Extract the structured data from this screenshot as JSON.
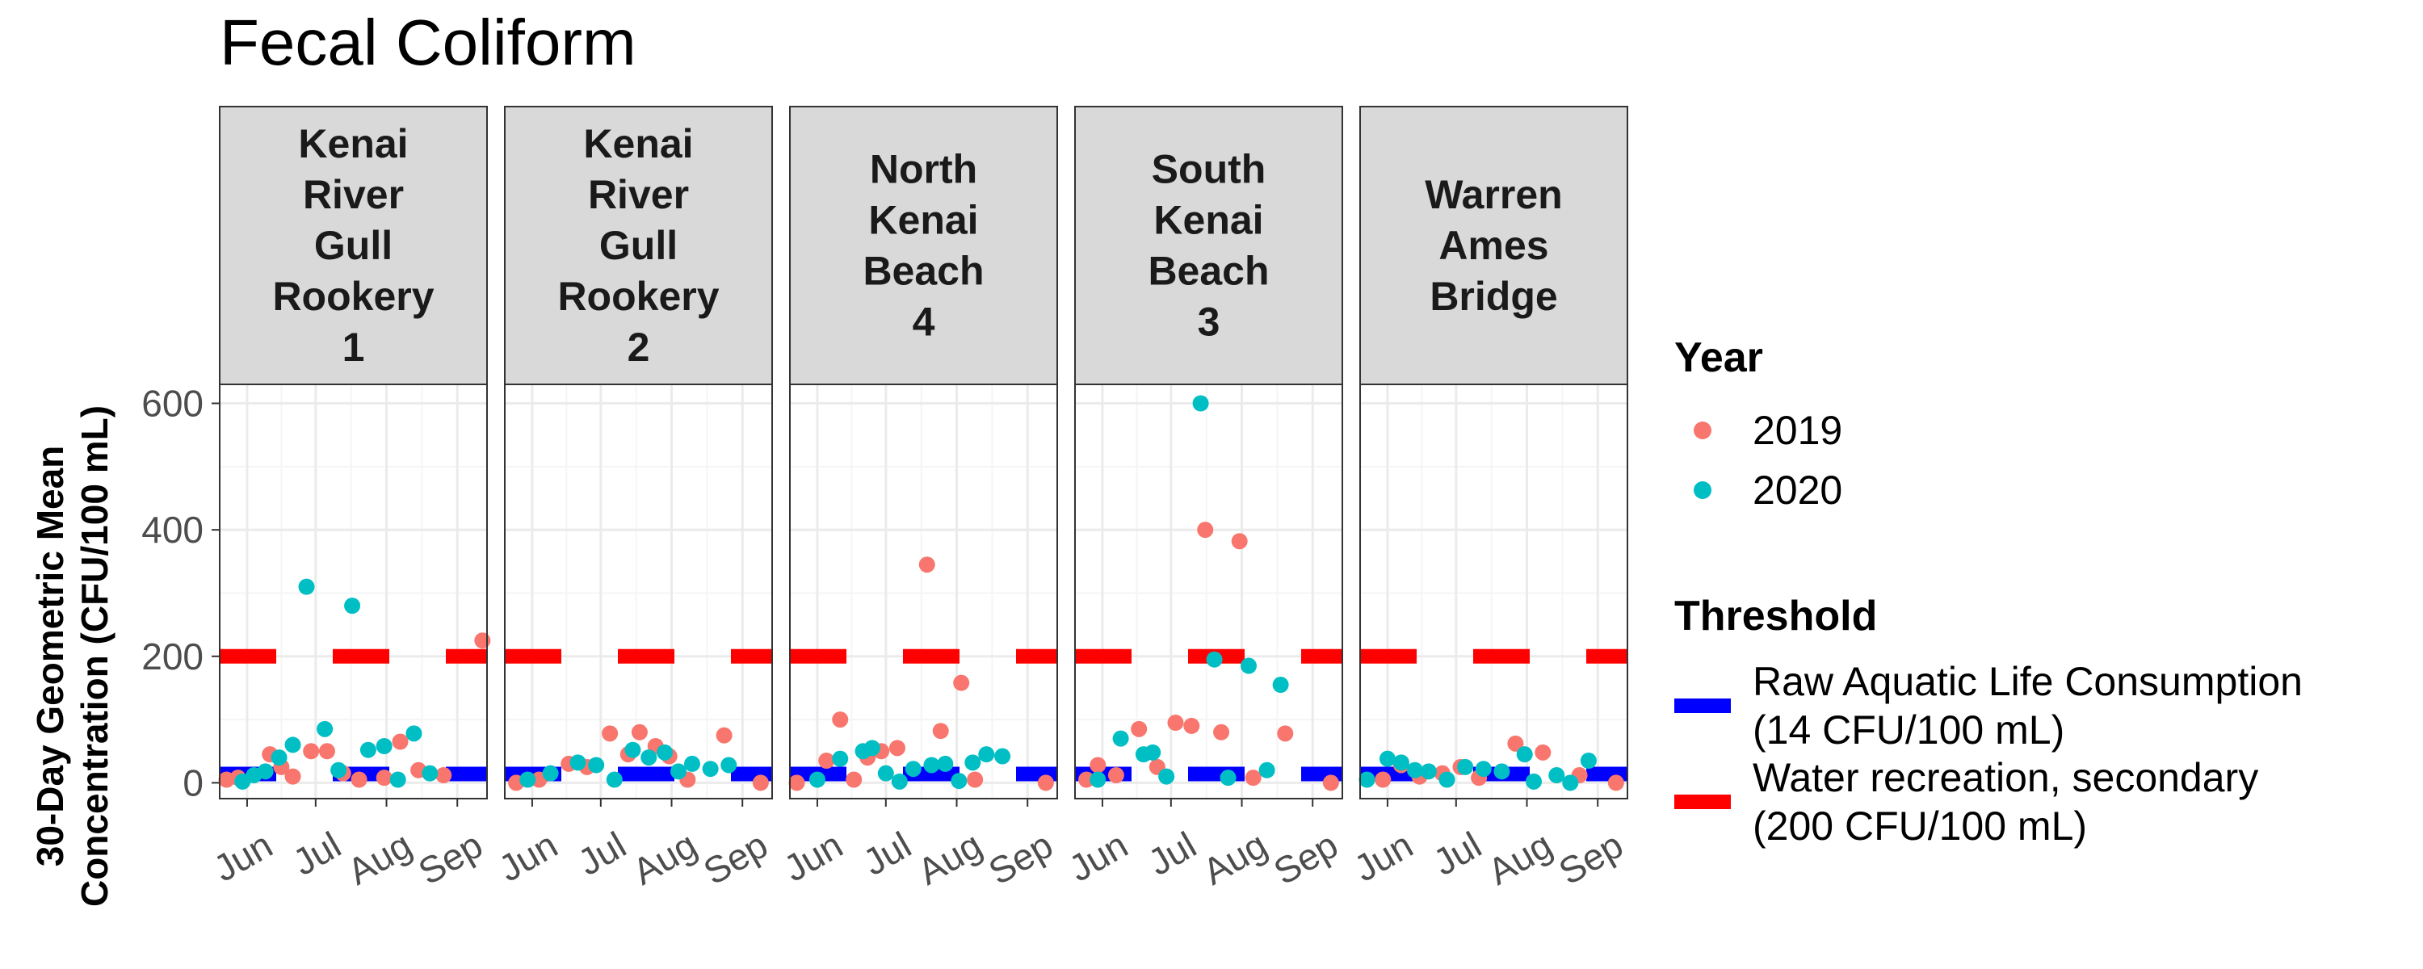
{
  "colors": {
    "y2019": "#F8766D",
    "y2020": "#00BFC4",
    "raw_threshold": "#0000FF",
    "rec_threshold": "#FF0000",
    "strip_fill": "#D9D9D9",
    "grid_major": "#EBEBEB",
    "grid_minor": "#F5F5F5"
  },
  "chart_data": {
    "type": "scatter",
    "title": "Fecal Coliform",
    "xlabel": "",
    "ylabel_lines": [
      "30-Day Geometric Mean",
      "Concentration (CFU/100 mL)"
    ],
    "ylim": [
      -25,
      630
    ],
    "yticks": [
      0,
      200,
      400,
      600
    ],
    "xlim": [
      140,
      257
    ],
    "xticks": [
      {
        "label": "Jun",
        "doy": 152
      },
      {
        "label": "Jul",
        "doy": 182
      },
      {
        "label": "Aug",
        "doy": 213
      },
      {
        "label": "Sep",
        "doy": 244
      }
    ],
    "grid": true,
    "legend_position": "right",
    "facets": [
      {
        "label_lines": [
          "Kenai",
          "River",
          "Gull",
          "Rookery",
          "1"
        ],
        "series": [
          {
            "name": "2019",
            "points": [
              [
                143,
                5
              ],
              [
                148,
                8
              ],
              [
                162,
                45
              ],
              [
                167,
                25
              ],
              [
                172,
                10
              ],
              [
                180,
                50
              ],
              [
                187,
                50
              ],
              [
                194,
                15
              ],
              [
                201,
                5
              ],
              [
                212,
                8
              ],
              [
                219,
                65
              ],
              [
                227,
                20
              ],
              [
                238,
                12
              ],
              [
                255,
                225
              ]
            ]
          },
          {
            "name": "2020",
            "points": [
              [
                150,
                2
              ],
              [
                155,
                12
              ],
              [
                160,
                18
              ],
              [
                166,
                40
              ],
              [
                172,
                60
              ],
              [
                178,
                310
              ],
              [
                186,
                85
              ],
              [
                192,
                20
              ],
              [
                198,
                280
              ],
              [
                205,
                52
              ],
              [
                212,
                58
              ],
              [
                218,
                5
              ],
              [
                225,
                78
              ],
              [
                232,
                15
              ]
            ]
          }
        ]
      },
      {
        "label_lines": [
          "Kenai",
          "River",
          "Gull",
          "Rookery",
          "2"
        ],
        "series": [
          {
            "name": "2019",
            "points": [
              [
                145,
                0
              ],
              [
                155,
                5
              ],
              [
                168,
                30
              ],
              [
                176,
                25
              ],
              [
                186,
                78
              ],
              [
                194,
                45
              ],
              [
                199,
                80
              ],
              [
                206,
                58
              ],
              [
                212,
                42
              ],
              [
                220,
                5
              ],
              [
                236,
                75
              ],
              [
                252,
                0
              ]
            ]
          },
          {
            "name": "2020",
            "points": [
              [
                150,
                5
              ],
              [
                160,
                15
              ],
              [
                172,
                32
              ],
              [
                180,
                28
              ],
              [
                188,
                5
              ],
              [
                196,
                52
              ],
              [
                203,
                40
              ],
              [
                210,
                48
              ],
              [
                216,
                18
              ],
              [
                222,
                30
              ],
              [
                230,
                22
              ],
              [
                238,
                28
              ]
            ]
          }
        ]
      },
      {
        "label_lines": [
          "North",
          "Kenai",
          "Beach",
          "4"
        ],
        "series": [
          {
            "name": "2019",
            "points": [
              [
                143,
                0
              ],
              [
                156,
                35
              ],
              [
                162,
                100
              ],
              [
                168,
                5
              ],
              [
                174,
                40
              ],
              [
                180,
                50
              ],
              [
                187,
                55
              ],
              [
                200,
                345
              ],
              [
                206,
                82
              ],
              [
                215,
                158
              ],
              [
                221,
                5
              ],
              [
                252,
                0
              ]
            ]
          },
          {
            "name": "2020",
            "points": [
              [
                152,
                5
              ],
              [
                162,
                38
              ],
              [
                172,
                50
              ],
              [
                176,
                55
              ],
              [
                182,
                15
              ],
              [
                188,
                2
              ],
              [
                194,
                22
              ],
              [
                202,
                28
              ],
              [
                208,
                30
              ],
              [
                214,
                3
              ],
              [
                220,
                32
              ],
              [
                226,
                45
              ],
              [
                233,
                42
              ]
            ]
          }
        ]
      },
      {
        "label_lines": [
          "South",
          "Kenai",
          "Beach",
          "3"
        ],
        "series": [
          {
            "name": "2019",
            "points": [
              [
                145,
                5
              ],
              [
                150,
                28
              ],
              [
                158,
                12
              ],
              [
                168,
                85
              ],
              [
                176,
                25
              ],
              [
                184,
                95
              ],
              [
                191,
                90
              ],
              [
                197,
                400
              ],
              [
                204,
                80
              ],
              [
                212,
                382
              ],
              [
                218,
                8
              ],
              [
                232,
                78
              ],
              [
                252,
                0
              ]
            ]
          },
          {
            "name": "2020",
            "points": [
              [
                150,
                5
              ],
              [
                160,
                70
              ],
              [
                170,
                45
              ],
              [
                174,
                48
              ],
              [
                180,
                10
              ],
              [
                195,
                600
              ],
              [
                201,
                195
              ],
              [
                207,
                8
              ],
              [
                216,
                185
              ],
              [
                224,
                20
              ],
              [
                230,
                155
              ]
            ]
          }
        ]
      },
      {
        "label_lines": [
          "Warren",
          "Ames",
          "Bridge"
        ],
        "series": [
          {
            "name": "2019",
            "points": [
              [
                150,
                5
              ],
              [
                158,
                28
              ],
              [
                166,
                10
              ],
              [
                176,
                15
              ],
              [
                184,
                25
              ],
              [
                192,
                8
              ],
              [
                208,
                62
              ],
              [
                220,
                48
              ],
              [
                236,
                12
              ],
              [
                252,
                0
              ]
            ]
          },
          {
            "name": "2020",
            "points": [
              [
                143,
                5
              ],
              [
                152,
                38
              ],
              [
                158,
                32
              ],
              [
                164,
                20
              ],
              [
                170,
                18
              ],
              [
                178,
                5
              ],
              [
                186,
                25
              ],
              [
                194,
                22
              ],
              [
                202,
                18
              ],
              [
                212,
                45
              ],
              [
                216,
                2
              ],
              [
                226,
                12
              ],
              [
                232,
                0
              ],
              [
                240,
                35
              ]
            ]
          }
        ]
      }
    ],
    "thresholds": [
      {
        "key": "raw",
        "value": 14
      },
      {
        "key": "rec",
        "value": 200
      }
    ],
    "legend": {
      "year_title": "Year",
      "year_entries": [
        "2019",
        "2020"
      ],
      "threshold_title": "Threshold",
      "threshold_entries": [
        {
          "key": "raw",
          "lines": [
            "Raw Aquatic Life Consumption",
            "(14 CFU/100 mL)"
          ]
        },
        {
          "key": "rec",
          "lines": [
            "Water recreation, secondary",
            "(200 CFU/100 mL)"
          ]
        }
      ]
    }
  }
}
